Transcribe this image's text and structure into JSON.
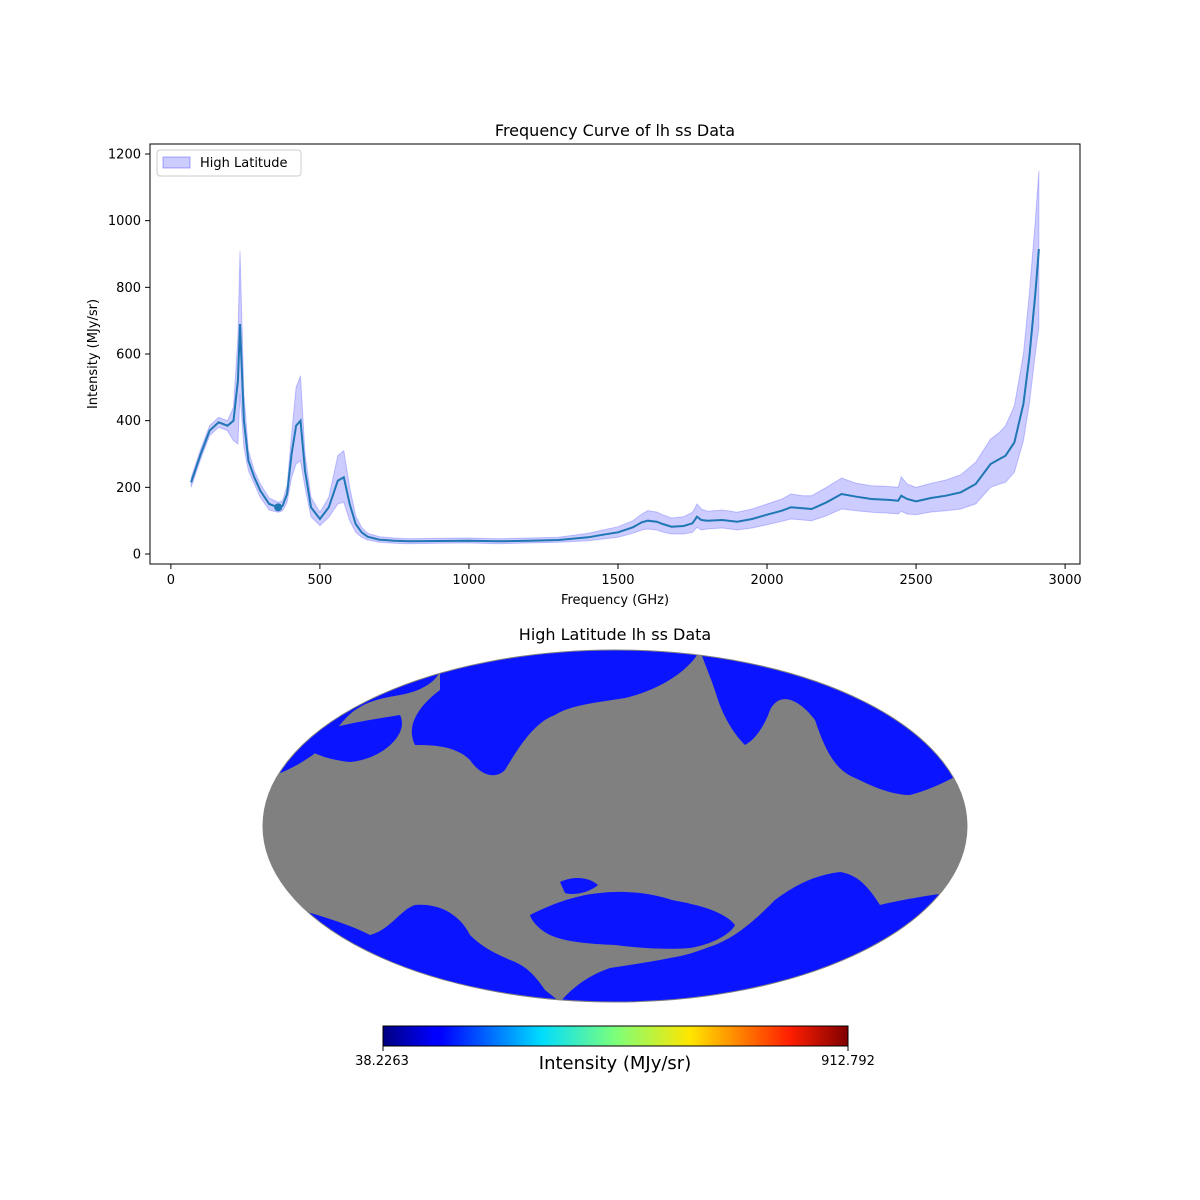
{
  "chart_data": [
    {
      "type": "line",
      "title": "Frequency Curve of lh ss Data",
      "xlabel": "Frequency (GHz)",
      "ylabel": "Intensity (MJy/sr)",
      "xlim": [
        -70,
        3050
      ],
      "ylim": [
        -30,
        1230
      ],
      "xticks": [
        0,
        500,
        1000,
        1500,
        2000,
        2500,
        3000
      ],
      "yticks": [
        0,
        200,
        400,
        600,
        800,
        1000,
        1200
      ],
      "legend": {
        "placement": "top-left",
        "entries": [
          "High Latitude"
        ]
      },
      "colors": {
        "line": "#1f77b4",
        "band": "#0000ff"
      },
      "series": [
        {
          "kind": "mean",
          "x": [
            68,
            100,
            130,
            160,
            190,
            210,
            225,
            232,
            245,
            260,
            280,
            300,
            330,
            360,
            375,
            390,
            405,
            420,
            435,
            450,
            470,
            500,
            530,
            560,
            580,
            600,
            620,
            640,
            660,
            700,
            750,
            800,
            900,
            1000,
            1100,
            1200,
            1300,
            1400,
            1450,
            1500,
            1550,
            1580,
            1600,
            1630,
            1650,
            1680,
            1720,
            1750,
            1765,
            1780,
            1800,
            1850,
            1900,
            1950,
            2000,
            2050,
            2080,
            2120,
            2150,
            2200,
            2250,
            2300,
            2350,
            2400,
            2440,
            2450,
            2470,
            2500,
            2550,
            2600,
            2650,
            2700,
            2750,
            2780,
            2800,
            2830,
            2860,
            2880,
            2900,
            2912
          ],
          "y": [
            215,
            300,
            370,
            395,
            385,
            400,
            520,
            690,
            400,
            280,
            230,
            190,
            150,
            140,
            145,
            180,
            300,
            385,
            400,
            250,
            140,
            105,
            140,
            220,
            230,
            150,
            90,
            65,
            52,
            43,
            40,
            38,
            39,
            40,
            38,
            40,
            42,
            50,
            58,
            65,
            80,
            95,
            100,
            97,
            90,
            82,
            84,
            92,
            112,
            102,
            100,
            102,
            97,
            105,
            118,
            130,
            140,
            137,
            135,
            155,
            180,
            172,
            165,
            163,
            160,
            175,
            165,
            158,
            168,
            175,
            185,
            210,
            270,
            285,
            295,
            335,
            450,
            590,
            780,
            915
          ]
        },
        {
          "kind": "band-upper",
          "x": [
            68,
            100,
            130,
            160,
            190,
            210,
            225,
            232,
            245,
            260,
            280,
            300,
            330,
            360,
            375,
            390,
            405,
            420,
            435,
            450,
            470,
            500,
            530,
            560,
            580,
            600,
            620,
            640,
            660,
            700,
            750,
            800,
            900,
            1000,
            1100,
            1200,
            1300,
            1400,
            1450,
            1500,
            1550,
            1580,
            1600,
            1630,
            1650,
            1680,
            1720,
            1750,
            1765,
            1780,
            1800,
            1850,
            1900,
            1950,
            2000,
            2050,
            2080,
            2120,
            2150,
            2200,
            2250,
            2300,
            2350,
            2400,
            2440,
            2450,
            2470,
            2500,
            2550,
            2600,
            2650,
            2700,
            2750,
            2780,
            2800,
            2830,
            2860,
            2880,
            2900,
            2912
          ],
          "y": [
            228,
            315,
            385,
            410,
            400,
            440,
            650,
            910,
            480,
            310,
            250,
            210,
            168,
            155,
            160,
            205,
            360,
            500,
            535,
            300,
            170,
            125,
            170,
            295,
            310,
            200,
            115,
            80,
            62,
            52,
            48,
            46,
            47,
            48,
            46,
            48,
            50,
            62,
            72,
            82,
            100,
            120,
            130,
            126,
            118,
            108,
            112,
            125,
            150,
            135,
            128,
            132,
            125,
            135,
            150,
            165,
            180,
            175,
            175,
            200,
            228,
            212,
            205,
            203,
            200,
            232,
            210,
            200,
            212,
            222,
            238,
            275,
            345,
            365,
            385,
            445,
            600,
            780,
            1000,
            1150
          ]
        },
        {
          "kind": "band-lower",
          "x": [
            68,
            100,
            130,
            160,
            190,
            210,
            225,
            232,
            245,
            260,
            280,
            300,
            330,
            360,
            375,
            390,
            405,
            420,
            435,
            450,
            470,
            500,
            530,
            560,
            580,
            600,
            620,
            640,
            660,
            700,
            750,
            800,
            900,
            1000,
            1100,
            1200,
            1300,
            1400,
            1450,
            1500,
            1550,
            1580,
            1600,
            1630,
            1650,
            1680,
            1720,
            1750,
            1765,
            1780,
            1800,
            1850,
            1900,
            1950,
            2000,
            2050,
            2080,
            2120,
            2150,
            2200,
            2250,
            2300,
            2350,
            2400,
            2440,
            2450,
            2470,
            2500,
            2550,
            2600,
            2650,
            2700,
            2750,
            2780,
            2800,
            2830,
            2860,
            2880,
            2900,
            2912
          ],
          "y": [
            200,
            285,
            355,
            380,
            370,
            340,
            330,
            480,
            320,
            250,
            210,
            170,
            132,
            125,
            130,
            155,
            230,
            270,
            280,
            200,
            112,
            85,
            110,
            150,
            155,
            100,
            65,
            50,
            42,
            35,
            32,
            31,
            32,
            33,
            31,
            33,
            35,
            40,
            45,
            50,
            62,
            72,
            75,
            72,
            66,
            60,
            60,
            65,
            80,
            72,
            75,
            78,
            72,
            78,
            88,
            98,
            105,
            102,
            100,
            115,
            135,
            130,
            125,
            123,
            120,
            128,
            120,
            118,
            126,
            130,
            135,
            150,
            200,
            210,
            215,
            245,
            340,
            450,
            600,
            680
          ]
        }
      ]
    },
    {
      "type": "heatmap",
      "title": "High Latitude lh ss Data",
      "projection": "mollweide",
      "colormap": "jet",
      "masked_color": "#808080",
      "colorbar": {
        "label": "Intensity (MJy/sr)",
        "min": 38.2263,
        "max": 912.792,
        "min_label": "38.2263",
        "max_label": "912.792",
        "placement": "bottom"
      },
      "dominant_value_color": "#0a14ff"
    }
  ]
}
